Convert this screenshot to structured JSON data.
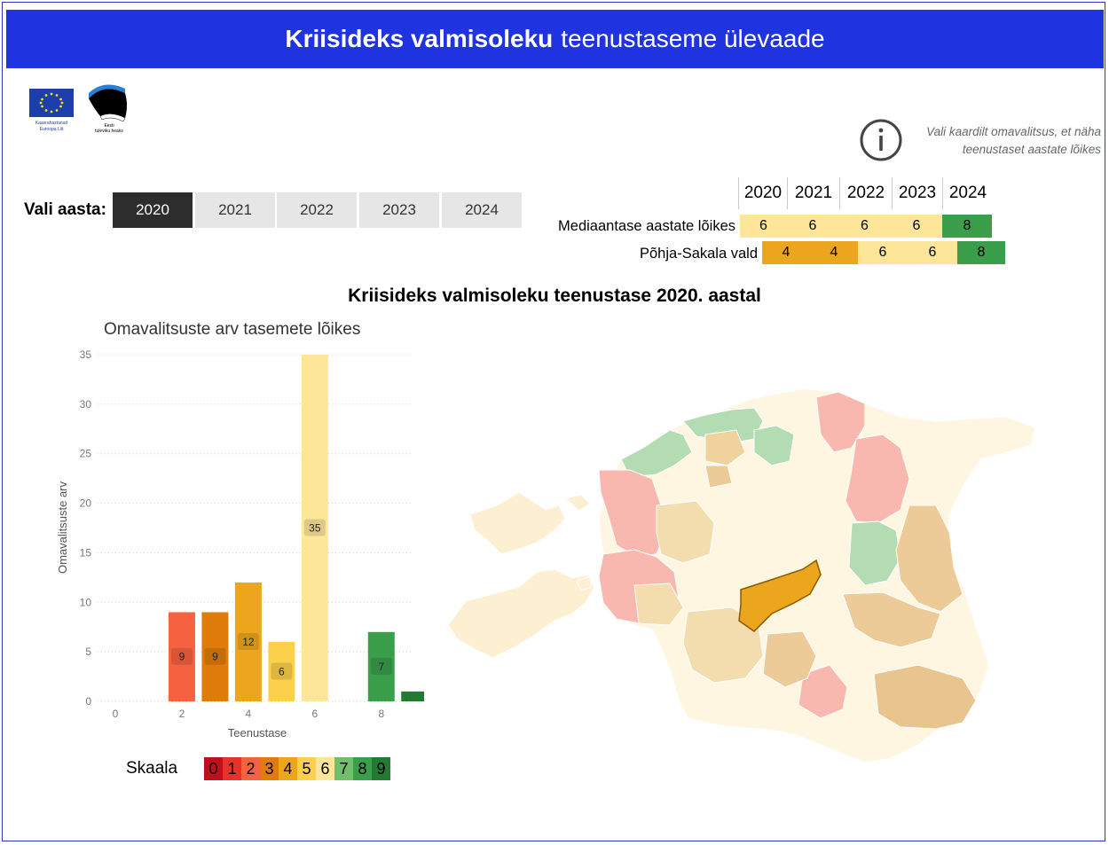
{
  "header": {
    "title_bold": "Kriisideks valmisoleku",
    "title_rest": "teenustaseme ülevaade"
  },
  "logos": {
    "eu_text_1": "Kaasrahastanud",
    "eu_text_2": "Euroopa Liit",
    "ee_text_1": "Eesti",
    "ee_text_2": "tuleviku heaks"
  },
  "info": {
    "text": "Vali kaardilt omavalitsus, et näha teenustaset aastate lõikes",
    "icon": "info-icon"
  },
  "year_selector": {
    "label": "Vali aasta:",
    "years": [
      "2020",
      "2021",
      "2022",
      "2023",
      "2024"
    ],
    "selected": "2020"
  },
  "median_table": {
    "years": [
      "2020",
      "2021",
      "2022",
      "2023",
      "2024"
    ],
    "rows": [
      {
        "label": "Mediaantase aastate lõikes",
        "values": [
          "6",
          "6",
          "6",
          "6",
          "8"
        ]
      },
      {
        "label": "Põhja-Sakala vald",
        "values": [
          "4",
          "4",
          "6",
          "6",
          "8"
        ]
      }
    ]
  },
  "main_title": "Kriisideks valmisoleku teenustase 2020. aastal",
  "chart_data": {
    "type": "bar",
    "title": "Omavalitsuste arv tasemete lõikes",
    "xlabel": "Teenustase",
    "ylabel": "Omavalitsuste arv",
    "x": [
      0,
      1,
      2,
      3,
      4,
      5,
      6,
      7,
      8,
      9
    ],
    "values": [
      0,
      0,
      9,
      9,
      12,
      6,
      35,
      0,
      7,
      1
    ],
    "data_labels": [
      "",
      "",
      "9",
      "9",
      "12",
      "6",
      "35",
      "",
      "7",
      ""
    ],
    "x_ticks": [
      "0",
      "2",
      "4",
      "6",
      "8"
    ],
    "y_ticks": [
      "0",
      "5",
      "10",
      "15",
      "20",
      "25",
      "30",
      "35"
    ],
    "ylim": [
      0,
      35
    ],
    "grid": true
  },
  "scale": {
    "label": "Skaala",
    "levels": [
      "0",
      "1",
      "2",
      "3",
      "4",
      "5",
      "6",
      "7",
      "8",
      "9"
    ],
    "colors": [
      "#c0101c",
      "#e8312a",
      "#f5623f",
      "#e07c0c",
      "#eba61d",
      "#fcd04a",
      "#fde59a",
      "#6fbf6b",
      "#3a9e4a",
      "#237a32"
    ]
  },
  "map": {
    "highlighted": "Põhja-Sakala vald"
  }
}
